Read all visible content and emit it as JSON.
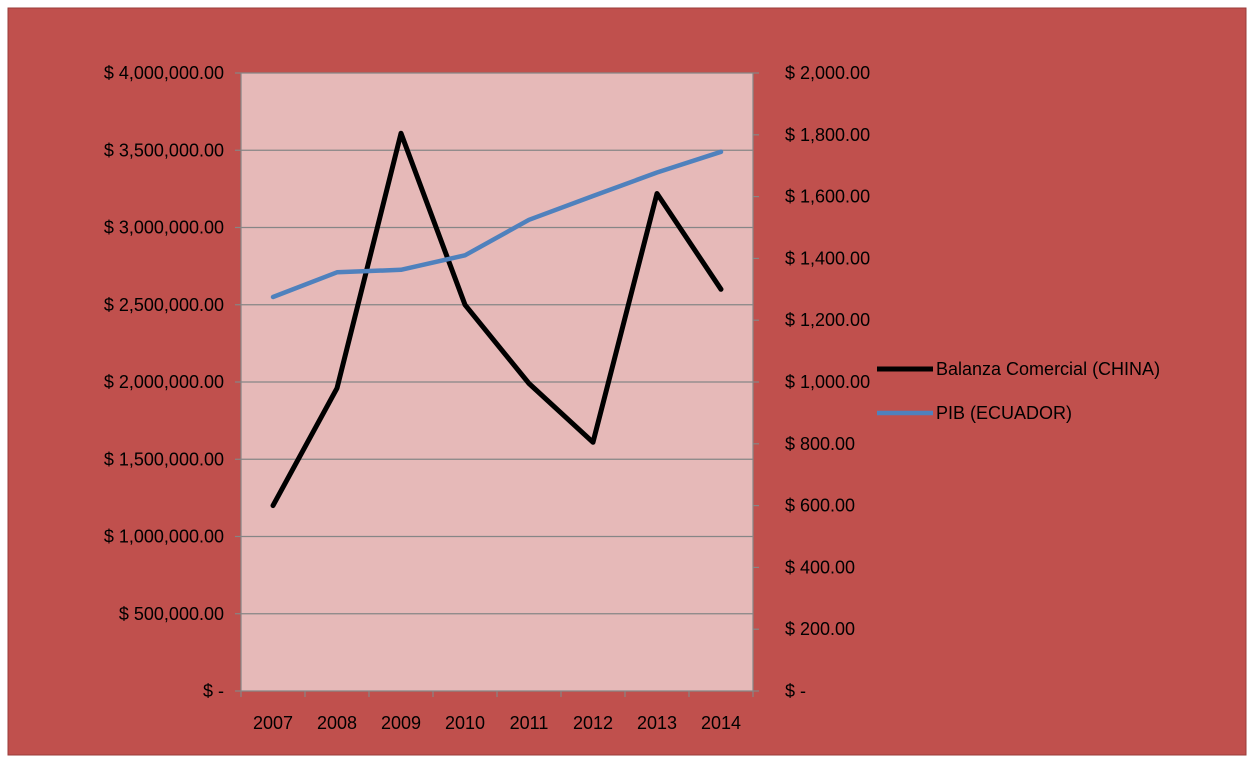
{
  "colors": {
    "chart_background": "#c0504d",
    "plot_background": "#e6b9b8",
    "gridline": "#868686",
    "axis": "#868686",
    "text": "#000000"
  },
  "chart_data": {
    "type": "line",
    "categories": [
      "2007",
      "2008",
      "2009",
      "2010",
      "2011",
      "2012",
      "2013",
      "2014"
    ],
    "series": [
      {
        "name": "Balanza Comercial (CHINA)",
        "axis": "left",
        "color": "#000000",
        "values": [
          1200000,
          1960000,
          3610000,
          2500000,
          1990000,
          1610000,
          3220000,
          2600000
        ]
      },
      {
        "name": "PIB (ECUADOR)",
        "axis": "right",
        "color": "#4f81bd",
        "values": [
          1275,
          1355,
          1363,
          1410,
          1525,
          1602,
          1678,
          1745
        ]
      }
    ],
    "y_left": {
      "ylim": [
        0,
        4000000
      ],
      "ticks": [
        0,
        500000,
        1000000,
        1500000,
        2000000,
        2500000,
        3000000,
        3500000,
        4000000
      ],
      "tick_labels": [
        "$ -",
        "$ 500,000.00",
        "$ 1,000,000.00",
        "$ 1,500,000.00",
        "$ 2,000,000.00",
        "$ 2,500,000.00",
        "$ 3,000,000.00",
        "$ 3,500,000.00",
        "$ 4,000,000.00"
      ]
    },
    "y_right": {
      "ylim": [
        0,
        2000
      ],
      "ticks": [
        0,
        200,
        400,
        600,
        800,
        1000,
        1200,
        1400,
        1600,
        1800,
        2000
      ],
      "tick_labels": [
        "$ -",
        "$ 200.00",
        "$ 400.00",
        "$ 600.00",
        "$ 800.00",
        "$ 1,000.00",
        "$ 1,200.00",
        "$ 1,400.00",
        "$ 1,600.00",
        "$ 1,800.00",
        "$ 2,000.00"
      ]
    },
    "grid": true,
    "legend_position": "right"
  }
}
